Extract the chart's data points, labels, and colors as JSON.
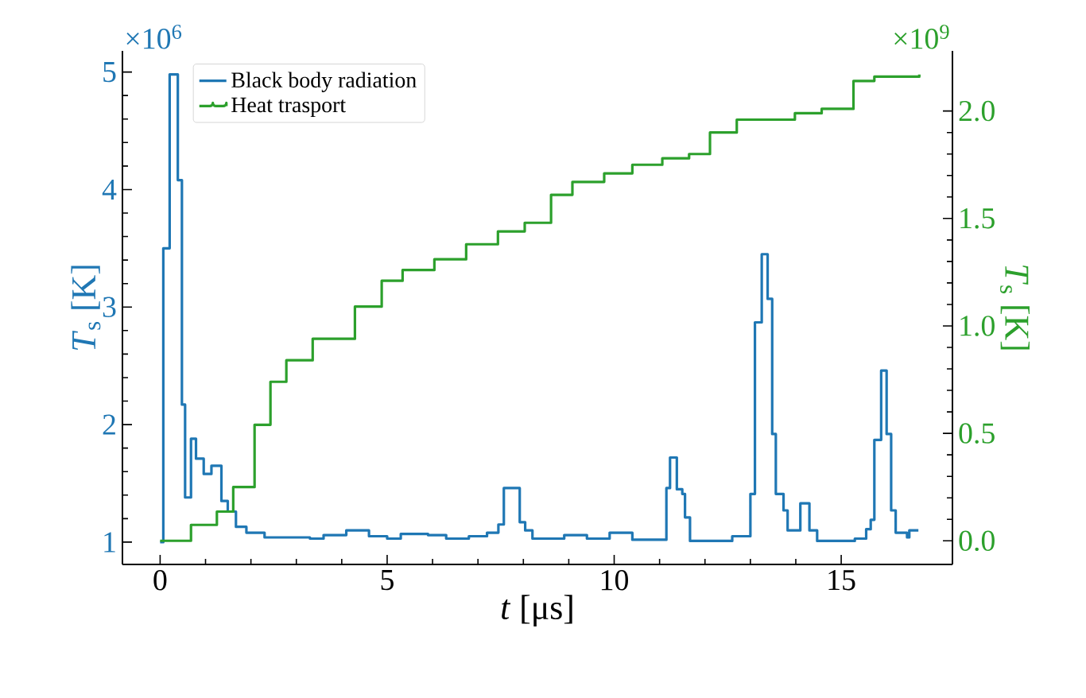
{
  "chart_data": {
    "type": "step",
    "xlabel": "*t* [μs]",
    "ylabel": "*T*$_{s}$ [K]",
    "y2label": "*T*$_{s}$ [K]",
    "xlim": [
      -0.83,
      17.45
    ],
    "xticks": [
      0,
      5,
      10,
      15
    ],
    "ylim": [
      0.81,
      5.18
    ],
    "yticks": [
      1,
      2,
      3,
      4,
      5
    ],
    "y2lim": [
      -0.11,
      2.28
    ],
    "y2ticks": [
      {
        "value": 0,
        "label": "0.0"
      },
      {
        "value": 0.5,
        "label": "0.5"
      },
      {
        "value": 1,
        "label": "1.0"
      },
      {
        "value": 1.5,
        "label": "1.5"
      },
      {
        "value": 2,
        "label": "2.0"
      }
    ],
    "annotations": [
      "×10$^{6}$",
      "×10$^{9}$"
    ],
    "legend": "top left",
    "grid": false,
    "series": [
      {
        "name": "Black body radiation",
        "color": "#1f77b4",
        "x": [
          0,
          0.07,
          0.21,
          0.39,
          0.48,
          0.55,
          0.68,
          0.79,
          0.96,
          1.13,
          1.35,
          1.49,
          1.67,
          1.9,
          2.3,
          3.3,
          3.6,
          4.1,
          4.6,
          5.0,
          5.3,
          5.9,
          6.3,
          6.8,
          7.2,
          7.45,
          7.57,
          7.92,
          8.04,
          8.2,
          8.9,
          9.4,
          9.9,
          10.4,
          11.15,
          11.23,
          11.38,
          11.5,
          11.56,
          11.67,
          12.6,
          13.0,
          13.1,
          13.25,
          13.38,
          13.48,
          13.56,
          13.73,
          13.82,
          14.1,
          14.3,
          14.47,
          15.3,
          15.55,
          15.65,
          15.73,
          15.88,
          16.0,
          16.1,
          16.2,
          16.45,
          16.5,
          16.7
        ],
        "values": [
          1.0,
          3.5,
          4.98,
          4.08,
          2.17,
          1.38,
          1.88,
          1.71,
          1.58,
          1.65,
          1.35,
          1.26,
          1.13,
          1.08,
          1.04,
          1.03,
          1.06,
          1.1,
          1.05,
          1.03,
          1.07,
          1.06,
          1.03,
          1.05,
          1.08,
          1.15,
          1.46,
          1.17,
          1.1,
          1.03,
          1.06,
          1.03,
          1.08,
          1.02,
          1.46,
          1.72,
          1.45,
          1.41,
          1.21,
          1.01,
          1.05,
          1.41,
          2.87,
          3.45,
          3.07,
          1.92,
          1.41,
          1.27,
          1.1,
          1.33,
          1.1,
          1.01,
          1.03,
          1.11,
          1.19,
          1.87,
          2.46,
          1.92,
          1.27,
          1.08,
          1.04,
          1.1,
          1.1
        ]
      },
      {
        "name": "Heat trasport",
        "color": "#2ca02c",
        "axis": "y2",
        "x": [
          0,
          0.68,
          1.25,
          1.61,
          2.08,
          2.43,
          2.78,
          3.36,
          4.29,
          4.88,
          5.34,
          6.04,
          6.74,
          7.44,
          8.03,
          8.61,
          9.08,
          9.78,
          10.4,
          11.06,
          11.65,
          12.11,
          12.7,
          13.98,
          14.57,
          15.27,
          15.73,
          16.72
        ],
        "values": [
          0,
          0.074,
          0.136,
          0.25,
          0.54,
          0.74,
          0.84,
          0.94,
          1.09,
          1.21,
          1.26,
          1.31,
          1.38,
          1.44,
          1.48,
          1.61,
          1.67,
          1.71,
          1.75,
          1.78,
          1.8,
          1.9,
          1.96,
          1.99,
          2.01,
          2.14,
          2.16,
          2.17
        ]
      }
    ]
  }
}
